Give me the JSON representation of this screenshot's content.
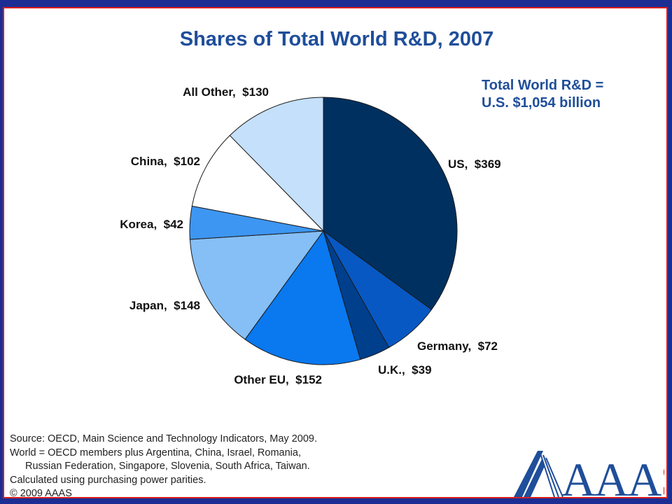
{
  "chart_data": {
    "type": "pie",
    "title": "Shares of Total World R&D, 2007",
    "annotation_lines": [
      "Total World R&D =",
      "U.S. $1,054 billion"
    ],
    "slices": [
      {
        "name": "US",
        "label": "US,  $369",
        "value": 369,
        "color": "#00305f"
      },
      {
        "name": "Germany",
        "label": "Germany,  $72",
        "value": 72,
        "color": "#0858c4"
      },
      {
        "name": "U.K.",
        "label": "U.K.,  $39",
        "value": 39,
        "color": "#003f8c"
      },
      {
        "name": "Other EU",
        "label": "Other EU,  $152",
        "value": 152,
        "color": "#0a78ee"
      },
      {
        "name": "Japan",
        "label": "Japan,  $148",
        "value": 148,
        "color": "#85bff5"
      },
      {
        "name": "Korea",
        "label": "Korea,  $42",
        "value": 42,
        "color": "#3d96f2"
      },
      {
        "name": "China",
        "label": "China,  $102",
        "value": 102,
        "color": "#ffffff"
      },
      {
        "name": "All Other",
        "label": "All Other,  $130",
        "value": 130,
        "color": "#c4e0fb"
      }
    ],
    "legend": "none",
    "grid": false
  },
  "source_lines": [
    "Source: OECD, Main Science and Technology Indicators, May 2009.",
    "World = OECD members plus Argentina, China, Israel, Romania,",
    "Russian Federation,  Singapore, Slovenia, South Africa, Taiwan.",
    "Calculated using purchasing power parities.",
    "© 2009 AAAS"
  ],
  "logo": {
    "text": "AAAS",
    "icon": "aaas-logo-icon",
    "color": "#1f4e9a",
    "accent": "#d81e1e"
  }
}
